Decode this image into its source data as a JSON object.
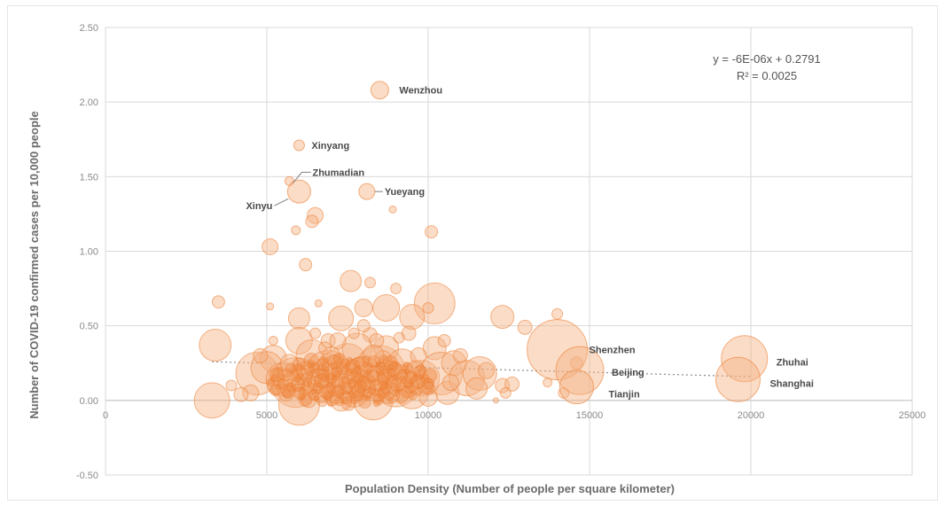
{
  "chart_data": {
    "type": "scatter",
    "subtype": "bubble",
    "title": "",
    "xlabel": "Population Density (Number of people per square kilometer)",
    "ylabel": "Number of COVID-19 confirmed cases per 10,000 people",
    "xlim": [
      0,
      25000
    ],
    "ylim": [
      -0.5,
      2.5
    ],
    "x_ticks": [
      "0",
      "5000",
      "10000",
      "15000",
      "20000",
      "25000"
    ],
    "y_ticks": [
      "-0.50",
      "0.00",
      "0.50",
      "1.00",
      "1.50",
      "2.00",
      "2.50"
    ],
    "grid": true,
    "colors": {
      "bubble_fill": "#f4b183",
      "bubble_stroke": "#ed7d31",
      "trend": "#9dc3e6"
    },
    "trendline": {
      "equation": "y = -6E-06x + 0.2791",
      "r_squared": "R² = 0.0025",
      "slope": -6e-06,
      "intercept": 0.2791,
      "x_range": [
        3300,
        20000
      ]
    },
    "labeled_points": [
      {
        "name": "Wenzhou",
        "x": 8500,
        "y": 2.08,
        "size": 10
      },
      {
        "name": "Xinyang",
        "x": 6000,
        "y": 1.71,
        "size": 6
      },
      {
        "name": "Zhumadian",
        "x": 5700,
        "y": 1.47,
        "size": 5
      },
      {
        "name": "Xinyu",
        "x": 6000,
        "y": 1.4,
        "size": 13
      },
      {
        "name": "Yueyang",
        "x": 8100,
        "y": 1.4,
        "size": 9
      },
      {
        "name": "Shenzhen",
        "x": 14000,
        "y": 0.34,
        "size": 34
      },
      {
        "name": "Beijing",
        "x": 14700,
        "y": 0.2,
        "size": 27
      },
      {
        "name": "Tianjin",
        "x": 14600,
        "y": 0.09,
        "size": 19
      },
      {
        "name": "Zhuhai",
        "x": 19800,
        "y": 0.28,
        "size": 26
      },
      {
        "name": "Shanghai",
        "x": 19600,
        "y": 0.14,
        "size": 25
      }
    ],
    "points": [
      [
        8900,
        1.28,
        4
      ],
      [
        5900,
        1.14,
        5
      ],
      [
        6500,
        1.24,
        9
      ],
      [
        6400,
        1.2,
        7
      ],
      [
        5100,
        1.03,
        9
      ],
      [
        10100,
        1.13,
        7
      ],
      [
        6200,
        0.91,
        7
      ],
      [
        7600,
        0.8,
        12
      ],
      [
        8200,
        0.79,
        6
      ],
      [
        8700,
        0.62,
        15
      ],
      [
        8000,
        0.62,
        10
      ],
      [
        10200,
        0.65,
        23
      ],
      [
        3500,
        0.66,
        7
      ],
      [
        5100,
        0.63,
        4
      ],
      [
        6000,
        0.55,
        12
      ],
      [
        6600,
        0.65,
        4
      ],
      [
        7300,
        0.55,
        14
      ],
      [
        9500,
        0.56,
        14
      ],
      [
        12300,
        0.56,
        13
      ],
      [
        13000,
        0.49,
        8
      ],
      [
        14000,
        0.58,
        6
      ],
      [
        9000,
        0.75,
        6
      ],
      [
        10000,
        0.62,
        6
      ],
      [
        8200,
        0.44,
        8
      ],
      [
        3400,
        0.37,
        18
      ],
      [
        4700,
        0.18,
        24
      ],
      [
        5200,
        0.28,
        15
      ],
      [
        5000,
        0.22,
        18
      ],
      [
        4500,
        0.05,
        9
      ],
      [
        3300,
        0.0,
        20
      ],
      [
        3900,
        0.1,
        6
      ],
      [
        4200,
        0.04,
        8
      ],
      [
        5500,
        0.14,
        19
      ],
      [
        5900,
        0.12,
        28
      ],
      [
        6000,
        -0.03,
        23
      ],
      [
        6000,
        0.4,
        15
      ],
      [
        6400,
        0.3,
        18
      ],
      [
        6900,
        0.18,
        26
      ],
      [
        7200,
        0.1,
        20
      ],
      [
        7500,
        0.25,
        22
      ],
      [
        7700,
        0.05,
        16
      ],
      [
        7800,
        0.35,
        17
      ],
      [
        8000,
        0.15,
        24
      ],
      [
        8300,
        0.0,
        22
      ],
      [
        8500,
        0.2,
        28
      ],
      [
        8700,
        0.35,
        14
      ],
      [
        9000,
        0.1,
        24
      ],
      [
        9200,
        0.25,
        16
      ],
      [
        9500,
        0.05,
        18
      ],
      [
        9800,
        0.15,
        20
      ],
      [
        10200,
        0.35,
        13
      ],
      [
        10400,
        0.18,
        24
      ],
      [
        10600,
        0.05,
        13
      ],
      [
        10800,
        0.25,
        14
      ],
      [
        11200,
        0.15,
        20
      ],
      [
        11600,
        0.18,
        19
      ],
      [
        12300,
        0.1,
        8
      ],
      [
        12600,
        0.11,
        8
      ],
      [
        12400,
        0.05,
        6
      ],
      [
        11500,
        0.08,
        12
      ],
      [
        6700,
        0.08,
        16
      ],
      [
        7100,
        0.22,
        14
      ],
      [
        7400,
        0.12,
        13
      ],
      [
        7900,
        0.22,
        12
      ],
      [
        8100,
        0.08,
        10
      ],
      [
        8800,
        0.05,
        12
      ],
      [
        9300,
        0.15,
        10
      ],
      [
        6200,
        0.2,
        10
      ],
      [
        5600,
        0.05,
        9
      ],
      [
        5300,
        0.1,
        10
      ],
      [
        9700,
        0.3,
        9
      ],
      [
        10000,
        0.02,
        10
      ],
      [
        6900,
        0.4,
        8
      ],
      [
        8400,
        0.4,
        8
      ],
      [
        7000,
        0.3,
        10
      ],
      [
        8600,
        0.28,
        9
      ],
      [
        6500,
        0.45,
        6
      ],
      [
        7700,
        0.45,
        6
      ],
      [
        9400,
        0.45,
        8
      ],
      [
        10500,
        0.4,
        7
      ],
      [
        4800,
        0.3,
        8
      ],
      [
        5700,
        0.25,
        10
      ],
      [
        6300,
        0.0,
        8
      ],
      [
        7600,
        0.18,
        11
      ],
      [
        8900,
        0.2,
        11
      ],
      [
        9900,
        0.1,
        9
      ],
      [
        11000,
        0.3,
        8
      ],
      [
        11800,
        0.2,
        9
      ],
      [
        14200,
        0.05,
        6
      ],
      [
        14600,
        0.25,
        7
      ],
      [
        13700,
        0.12,
        5
      ],
      [
        12100,
        0.0,
        3
      ],
      [
        10700,
        0.12,
        9
      ],
      [
        5200,
        0.4,
        5
      ],
      [
        7200,
        0.4,
        9
      ],
      [
        8000,
        0.5,
        7
      ],
      [
        6800,
        0.35,
        7
      ],
      [
        9100,
        0.42,
        6
      ],
      [
        6600,
        0.14,
        12
      ],
      [
        7300,
        0.0,
        12
      ],
      [
        7900,
        0.1,
        12
      ],
      [
        8300,
        0.3,
        12
      ],
      [
        8400,
        0.15,
        14
      ],
      [
        9600,
        0.2,
        11
      ]
    ]
  }
}
